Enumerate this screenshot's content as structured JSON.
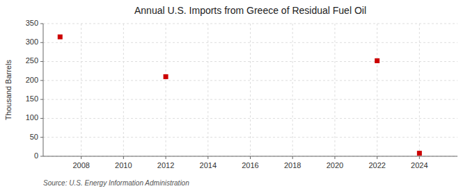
{
  "chart_data": {
    "type": "scatter",
    "title": "Annual U.S. Imports from Greece of Residual Fuel Oil",
    "y_label": "Thousand Barrels",
    "annotation": "Source: U.S. Energy Information Administration",
    "x": [
      2007,
      2012,
      2022,
      2024
    ],
    "values": [
      315,
      210,
      252,
      8
    ],
    "color": "#cc0000",
    "marker": "square",
    "xlim": [
      2006.2,
      2025.8
    ],
    "ylim": [
      0,
      350
    ],
    "xticks": [
      2008,
      2010,
      2012,
      2014,
      2016,
      2018,
      2020,
      2022,
      2024
    ],
    "yticks": [
      0,
      50,
      100,
      150,
      200,
      250,
      300,
      350
    ],
    "grid": true
  }
}
